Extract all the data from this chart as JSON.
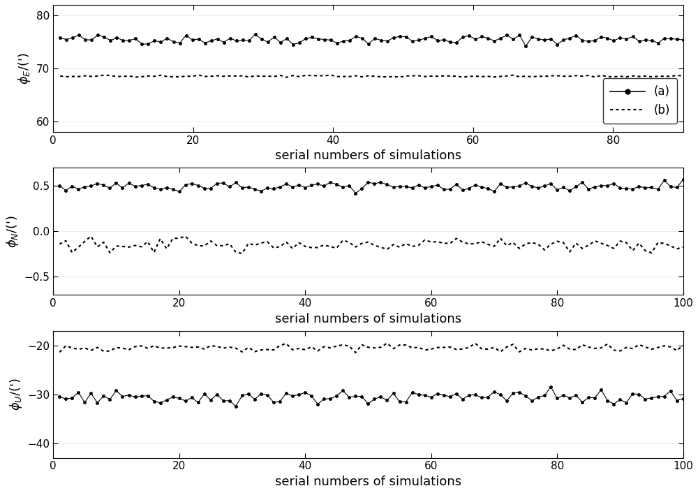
{
  "n_simulations": 100,
  "subplot1": {
    "line_a_mean": 75.5,
    "line_a_noise": 0.5,
    "line_b_mean": 68.5,
    "line_b_noise": 0.1,
    "ylim": [
      58,
      82
    ],
    "yticks": [
      60,
      70,
      80
    ],
    "ylabel": "$\\phi_E$/(apostrophe)",
    "xlim": [
      0,
      90
    ],
    "xticks": [
      0,
      20,
      40,
      60,
      80
    ]
  },
  "subplot2": {
    "line_a_mean": 0.49,
    "line_a_noise": 0.03,
    "line_b_mean": -0.15,
    "line_b_noise": 0.04,
    "ylim": [
      -0.7,
      0.7
    ],
    "yticks": [
      -0.5,
      0,
      0.5
    ],
    "ylabel": "$\\phi_N$/(apostrophe)",
    "xlim": [
      0,
      100
    ],
    "xticks": [
      0,
      20,
      40,
      60,
      80,
      100
    ]
  },
  "subplot3": {
    "line_a_mean": -30.5,
    "line_a_noise": 0.8,
    "line_b_mean": -20.5,
    "line_b_noise": 0.4,
    "ylim": [
      -43,
      -17
    ],
    "yticks": [
      -40,
      -30,
      -20
    ],
    "ylabel": "$\\phi_U$/(apostrophe)",
    "xlim": [
      0,
      100
    ],
    "xticks": [
      0,
      20,
      40,
      60,
      80,
      100
    ]
  },
  "xlabel": "serial numbers of simulations",
  "legend_labels": [
    "(a)",
    "(b)"
  ],
  "line_color": "black",
  "marker_a": "o",
  "marker_size": 3,
  "seed": 42
}
